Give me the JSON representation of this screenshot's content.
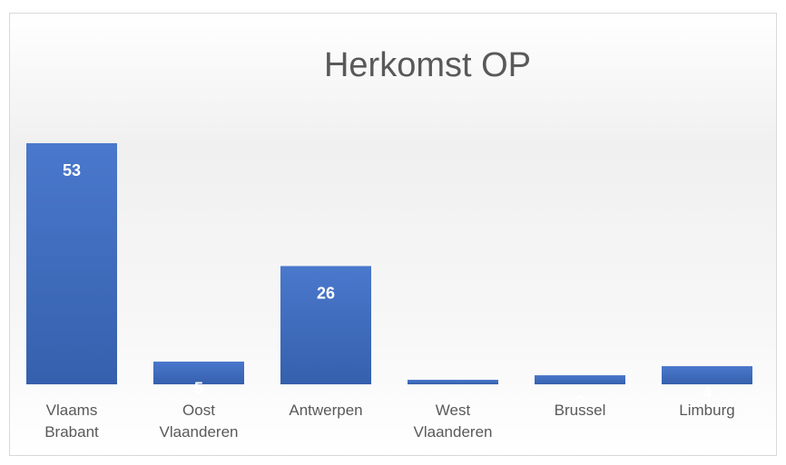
{
  "chart_data": {
    "type": "bar",
    "title": "Herkomst OP",
    "categories": [
      "Vlaams Brabant",
      "Oost Vlaanderen",
      "Antwerpen",
      "West Vlaanderen",
      "Brussel",
      "Limburg"
    ],
    "values": [
      53,
      5,
      26,
      1,
      2,
      4
    ],
    "color": "#4472c4"
  }
}
